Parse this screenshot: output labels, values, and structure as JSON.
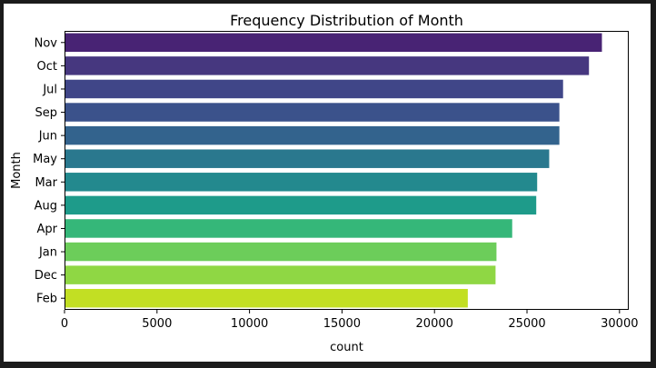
{
  "chart_data": {
    "type": "bar",
    "orientation": "horizontal",
    "title": "Frequency Distribution of Month",
    "xlabel": "count",
    "ylabel": "Month",
    "categories": [
      "Nov",
      "Oct",
      "Jul",
      "Sep",
      "Jun",
      "May",
      "Mar",
      "Aug",
      "Apr",
      "Jan",
      "Dec",
      "Feb"
    ],
    "values": [
      29050,
      28350,
      26950,
      26750,
      26750,
      26200,
      25550,
      25500,
      24200,
      23350,
      23300,
      21800
    ],
    "xlim": [
      0,
      30500
    ],
    "xticks": [
      "0",
      "5000",
      "10000",
      "15000",
      "20000",
      "25000",
      "30000"
    ],
    "xtick_values": [
      0,
      5000,
      10000,
      15000,
      20000,
      25000,
      30000
    ],
    "grid": false,
    "colormap": "viridis",
    "colors": [
      "#482374",
      "#46377f",
      "#404688",
      "#3b528b",
      "#33638d",
      "#2a788e",
      "#23898e",
      "#1e9b8a",
      "#35b779",
      "#6ccd5a",
      "#8fd744",
      "#c2df23"
    ]
  }
}
